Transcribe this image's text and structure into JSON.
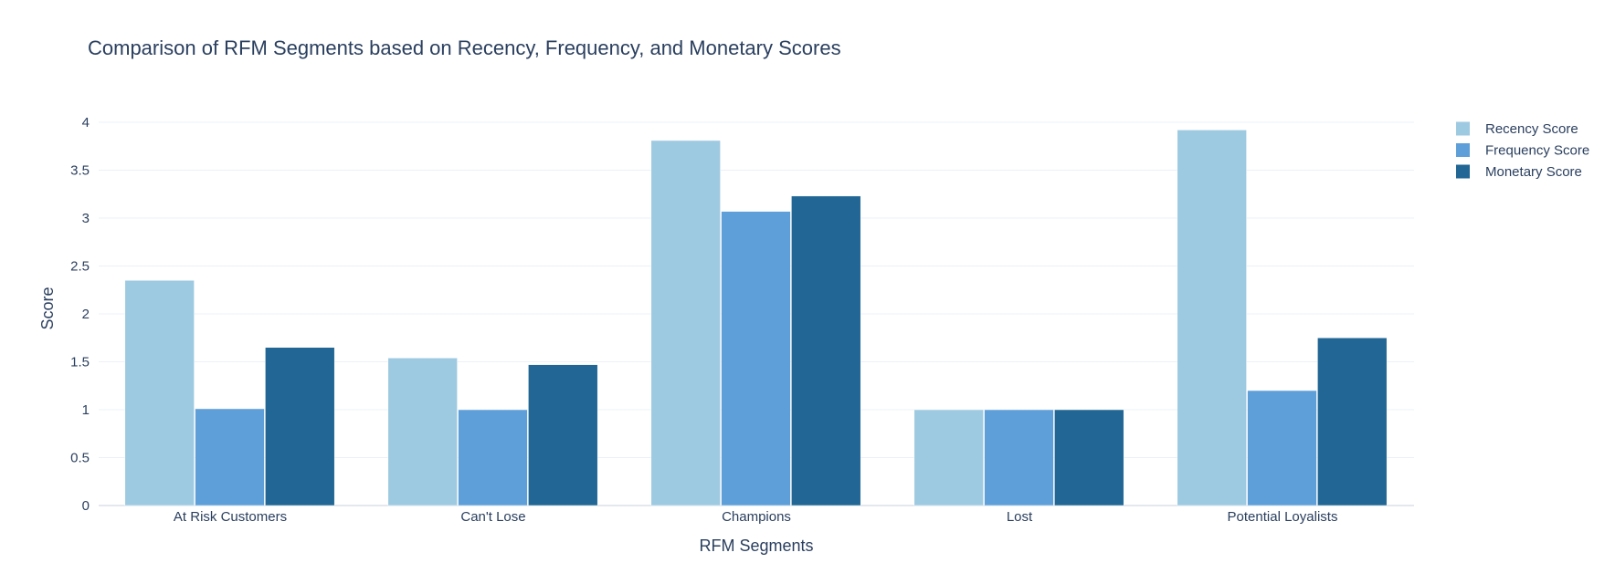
{
  "chart_data": {
    "type": "bar",
    "title": "Comparison of RFM Segments based on Recency, Frequency, and Monetary Scores",
    "xlabel": "RFM Segments",
    "ylabel": "Score",
    "categories": [
      "At Risk Customers",
      "Can't Lose",
      "Champions",
      "Lost",
      "Potential Loyalists"
    ],
    "ylim": [
      0,
      4.2
    ],
    "yticks": [
      0,
      0.5,
      1,
      1.5,
      2,
      2.5,
      3,
      3.5,
      4
    ],
    "ytick_labels": [
      "0",
      "0.5",
      "1",
      "1.5",
      "2",
      "2.5",
      "3",
      "3.5",
      "4"
    ],
    "grid": true,
    "legend_position": "top-right",
    "series": [
      {
        "name": "Recency Score",
        "color": "#9ecae1",
        "values": [
          2.35,
          1.54,
          3.81,
          1.0,
          3.92
        ]
      },
      {
        "name": "Frequency Score",
        "color": "#5f9fd9",
        "values": [
          1.01,
          1.0,
          3.07,
          1.0,
          1.2
        ]
      },
      {
        "name": "Monetary Score",
        "color": "#216694",
        "values": [
          1.65,
          1.47,
          3.23,
          1.0,
          1.75
        ]
      }
    ]
  }
}
